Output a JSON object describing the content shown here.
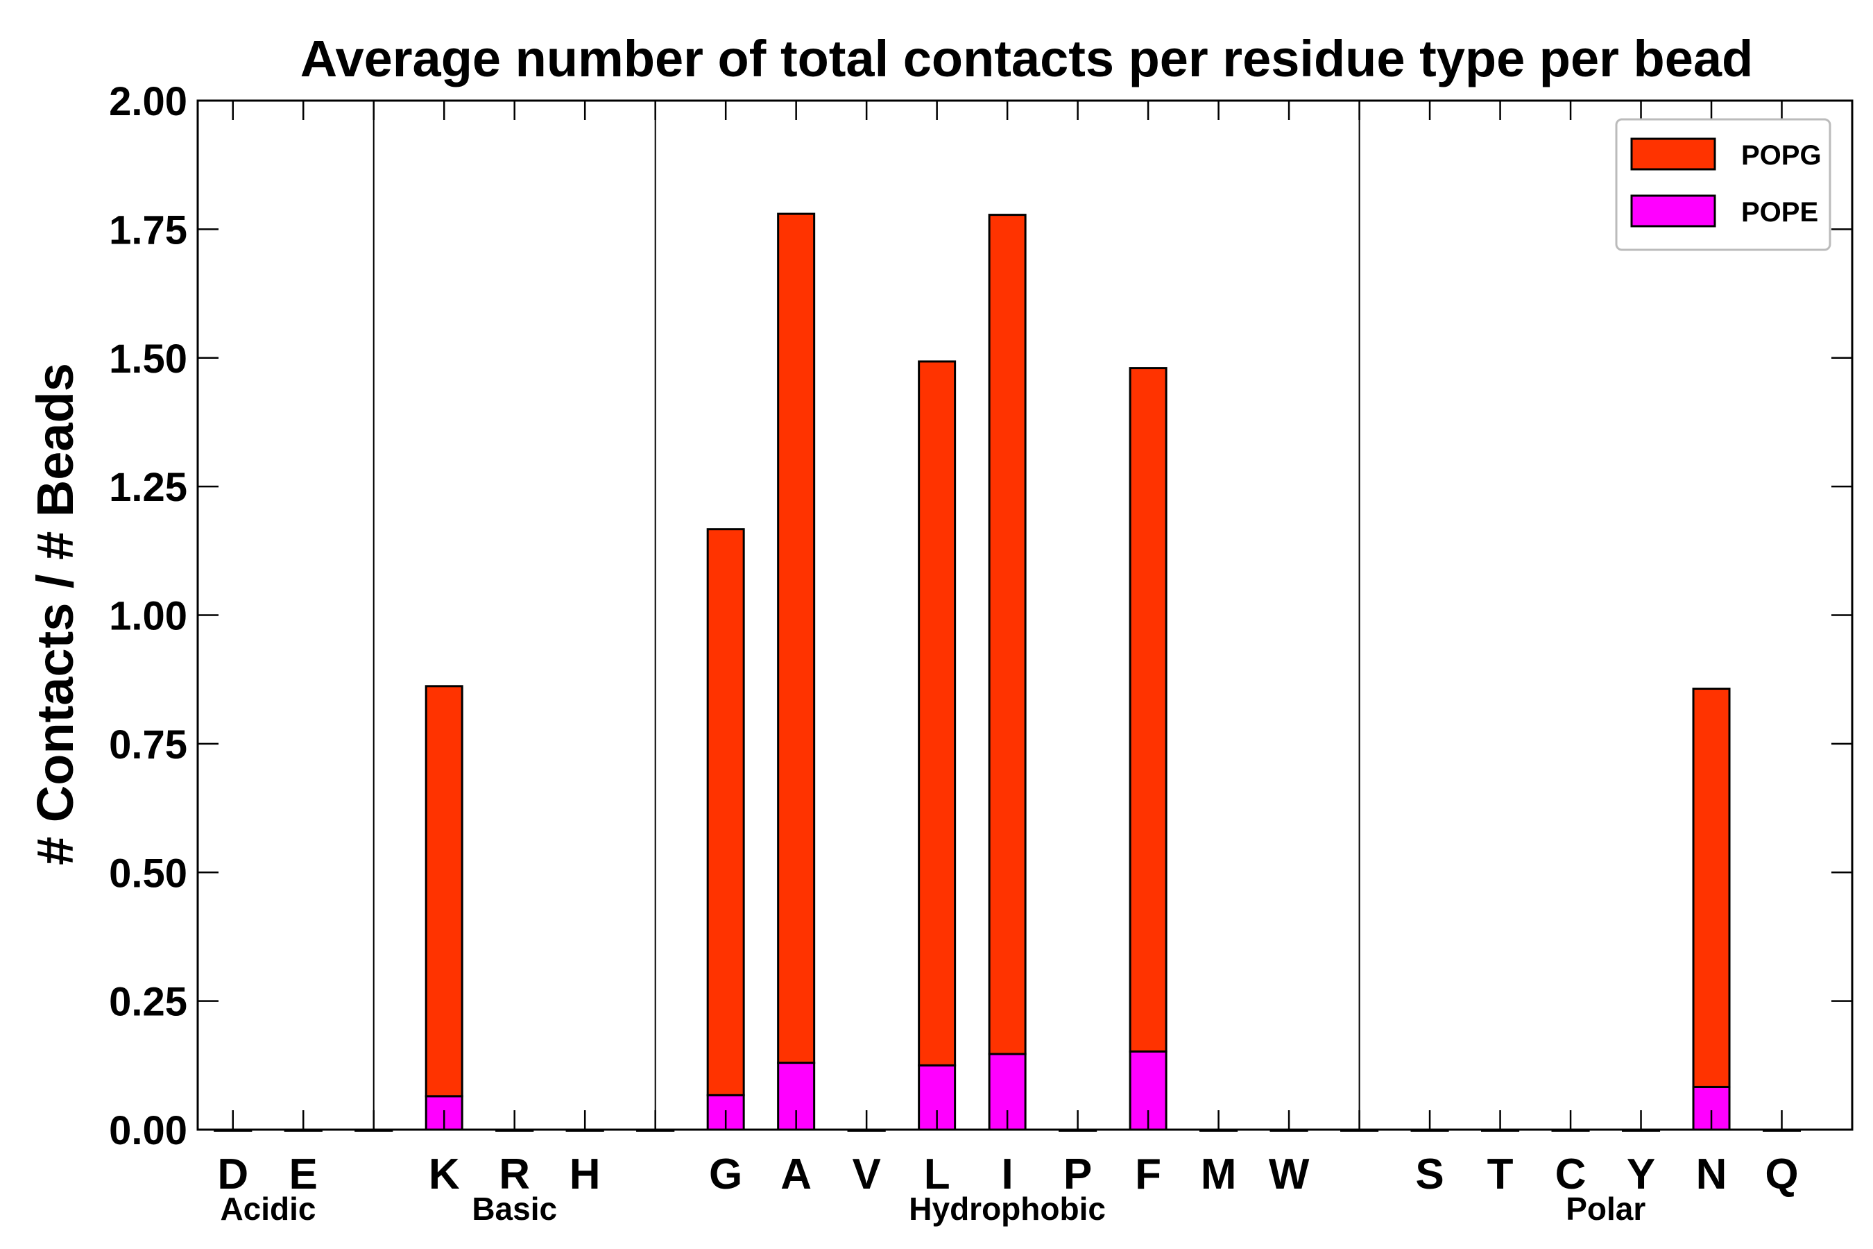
{
  "chart_data": {
    "type": "bar",
    "stacked": true,
    "title": "Average number of total contacts per residue type per bead",
    "xlabel": "",
    "ylabel": "# Contacts / # Beads",
    "ylim": [
      0,
      2.0
    ],
    "yticks": [
      "0.00",
      "0.25",
      "0.50",
      "0.75",
      "1.00",
      "1.25",
      "1.50",
      "1.75",
      "2.00"
    ],
    "categories": [
      "D",
      "E",
      "",
      "K",
      "R",
      "H",
      "",
      "G",
      "A",
      "V",
      "L",
      "I",
      "P",
      "F",
      "M",
      "W",
      "",
      "S",
      "T",
      "C",
      "Y",
      "N",
      "Q"
    ],
    "groups": [
      {
        "label": "Acidic",
        "categories": [
          "D",
          "E"
        ]
      },
      {
        "label": "Basic",
        "categories": [
          "K",
          "R",
          "H"
        ]
      },
      {
        "label": "Hydrophobic",
        "categories": [
          "G",
          "A",
          "V",
          "L",
          "I",
          "P",
          "F",
          "M",
          "W"
        ]
      },
      {
        "label": "Polar",
        "categories": [
          "S",
          "T",
          "C",
          "Y",
          "N",
          "Q"
        ]
      }
    ],
    "series": [
      {
        "name": "POPE",
        "color": "#ff00ff",
        "values": [
          0,
          0,
          0,
          0.065,
          0,
          0,
          0,
          0.067,
          0.13,
          0,
          0.125,
          0.147,
          0,
          0.152,
          0,
          0,
          0,
          0,
          0,
          0,
          0,
          0.083,
          0
        ]
      },
      {
        "name": "POPG",
        "color": "#ff3300",
        "values": [
          0,
          0,
          0,
          0.797,
          0,
          0,
          0,
          1.1,
          1.65,
          0,
          1.368,
          1.631,
          0,
          1.328,
          0,
          0,
          0,
          0,
          0,
          0,
          0,
          0.774,
          0
        ]
      }
    ],
    "legend": {
      "position": "top-right",
      "entries": [
        "POPG",
        "POPE"
      ]
    },
    "grid": false
  }
}
